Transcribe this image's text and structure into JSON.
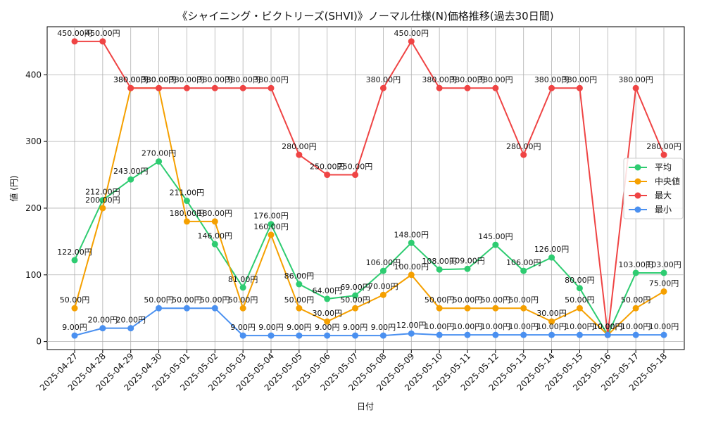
{
  "chart_data": {
    "type": "line",
    "title": "《シャイニング・ビクトリーズ(SHVI)》ノーマル仕様(N)価格推移(過去30日間)",
    "xlabel": "日付",
    "ylabel": "値 (円)",
    "ylim": [
      -12,
      472
    ],
    "yticks": [
      0,
      100,
      200,
      300,
      400
    ],
    "grid": true,
    "legend_position": "right",
    "label_suffix": "円",
    "categories": [
      "2025-04-27",
      "2025-04-28",
      "2025-04-29",
      "2025-04-30",
      "2025-05-01",
      "2025-05-02",
      "2025-05-03",
      "2025-05-04",
      "2025-05-05",
      "2025-05-06",
      "2025-05-07",
      "2025-05-08",
      "2025-05-09",
      "2025-05-10",
      "2025-05-11",
      "2025-05-12",
      "2025-05-13",
      "2025-05-14",
      "2025-05-15",
      "2025-05-16",
      "2025-05-17",
      "2025-05-18"
    ],
    "series": [
      {
        "name": "平均",
        "color": "#2ecc71",
        "values": [
          122,
          212,
          243,
          270,
          211,
          146,
          81,
          176,
          86,
          64,
          69,
          106,
          148,
          108,
          109,
          145,
          106,
          126,
          80,
          10,
          103,
          103
        ]
      },
      {
        "name": "中央値",
        "color": "#f5a000",
        "values": [
          50,
          200,
          380,
          380,
          180,
          180,
          50,
          160,
          50,
          30,
          50,
          70,
          100,
          50,
          50,
          50,
          50,
          30,
          50,
          10,
          50,
          75
        ]
      },
      {
        "name": "最大",
        "color": "#ef4444",
        "values": [
          450,
          450,
          380,
          380,
          380,
          380,
          380,
          380,
          280,
          250,
          250,
          380,
          450,
          380,
          380,
          380,
          280,
          380,
          380,
          10,
          380,
          280
        ]
      },
      {
        "name": "最小",
        "color": "#4a90f0",
        "values": [
          9,
          20,
          20,
          50,
          50,
          50,
          9,
          9,
          9,
          9,
          9,
          9,
          12,
          10,
          10,
          10,
          10,
          10,
          10,
          10,
          10,
          10
        ]
      }
    ]
  }
}
